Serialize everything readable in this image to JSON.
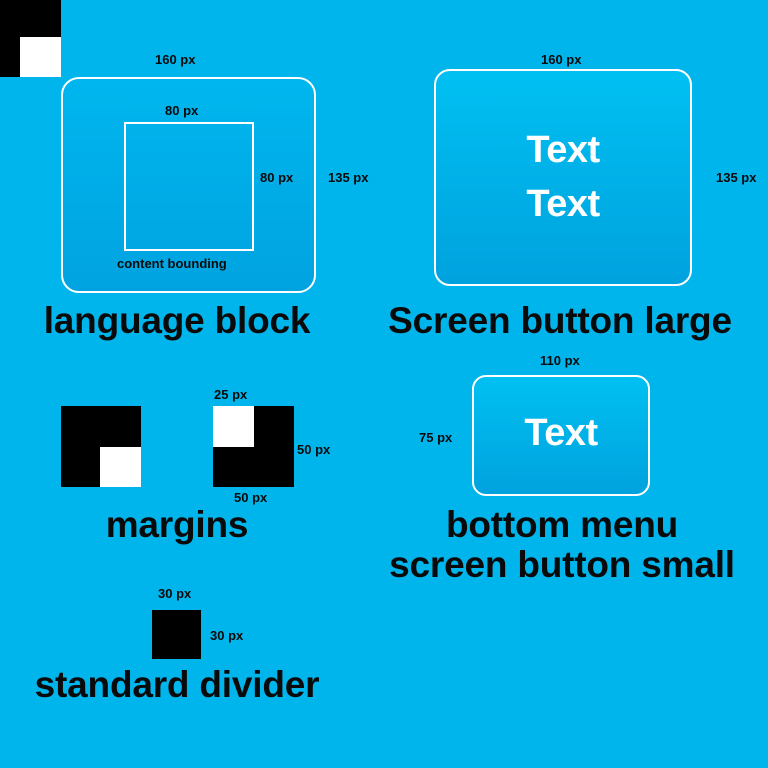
{
  "corner_icon": "margin-corner-icon",
  "language_block": {
    "width_label": "160 px",
    "inner_width_label": "80 px",
    "inner_height_label": "80 px",
    "height_label": "135 px",
    "content_label": "content bounding",
    "title": "language block"
  },
  "screen_button_large": {
    "width_label": "160 px",
    "height_label": "135 px",
    "text_line_1": "Text",
    "text_line_2": "Text",
    "title": "Screen button large"
  },
  "margins": {
    "size_label_top": "25 px",
    "height_label": "50 px",
    "width_label": "50 px",
    "title": "margins"
  },
  "screen_button_small": {
    "width_label": "110 px",
    "height_label": "75 px",
    "text": "Text",
    "title_line_1": "bottom menu",
    "title_line_2": "screen button small"
  },
  "standard_divider": {
    "width_label": "30 px",
    "height_label": "30 px",
    "title": "standard divider"
  },
  "colors": {
    "background": "#00b4ec",
    "button_fill": "#00a8e4",
    "border": "#ffffff",
    "block": "#000000"
  }
}
